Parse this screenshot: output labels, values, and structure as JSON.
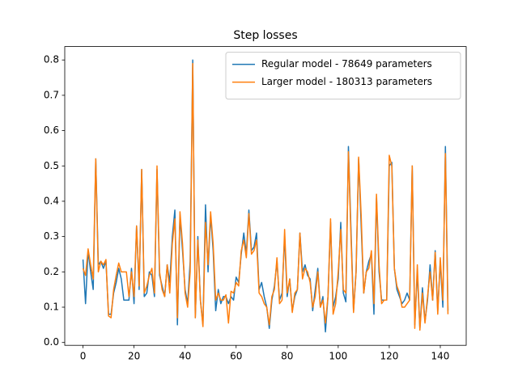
{
  "chart_data": {
    "type": "line",
    "title": "Step losses",
    "x": [
      0,
      1,
      2,
      3,
      4,
      5,
      6,
      7,
      8,
      9,
      10,
      11,
      12,
      13,
      14,
      15,
      16,
      17,
      18,
      19,
      20,
      21,
      22,
      23,
      24,
      25,
      26,
      27,
      28,
      29,
      30,
      31,
      32,
      33,
      34,
      35,
      36,
      37,
      38,
      39,
      40,
      41,
      42,
      43,
      44,
      45,
      46,
      47,
      48,
      49,
      50,
      51,
      52,
      53,
      54,
      55,
      56,
      57,
      58,
      59,
      60,
      61,
      62,
      63,
      64,
      65,
      66,
      67,
      68,
      69,
      70,
      71,
      72,
      73,
      74,
      75,
      76,
      77,
      78,
      79,
      80,
      81,
      82,
      83,
      84,
      85,
      86,
      87,
      88,
      89,
      90,
      91,
      92,
      93,
      94,
      95,
      96,
      97,
      98,
      99,
      100,
      101,
      102,
      103,
      104,
      105,
      106,
      107,
      108,
      109,
      110,
      111,
      112,
      113,
      114,
      115,
      116,
      117,
      118,
      119,
      120,
      121,
      122,
      123,
      124,
      125,
      126,
      127,
      128,
      129,
      130,
      131,
      132,
      133,
      134,
      135,
      136,
      137,
      138,
      139,
      140,
      141,
      142,
      143
    ],
    "series": [
      {
        "name": "Regular model - 78649 parameters",
        "color": "#1f77b4",
        "values": [
          0.235,
          0.11,
          0.26,
          0.2,
          0.15,
          0.52,
          0.22,
          0.23,
          0.21,
          0.23,
          0.08,
          0.08,
          0.14,
          0.17,
          0.21,
          0.18,
          0.12,
          0.12,
          0.12,
          0.21,
          0.11,
          0.33,
          0.15,
          0.49,
          0.13,
          0.14,
          0.2,
          0.19,
          0.13,
          0.49,
          0.19,
          0.16,
          0.13,
          0.22,
          0.17,
          0.3,
          0.375,
          0.05,
          0.36,
          0.26,
          0.15,
          0.11,
          0.23,
          0.8,
          0.07,
          0.3,
          0.12,
          0.05,
          0.39,
          0.2,
          0.36,
          0.26,
          0.09,
          0.15,
          0.11,
          0.13,
          0.13,
          0.11,
          0.13,
          0.12,
          0.185,
          0.17,
          0.25,
          0.31,
          0.25,
          0.375,
          0.26,
          0.27,
          0.31,
          0.15,
          0.17,
          0.13,
          0.1,
          0.04,
          0.12,
          0.16,
          0.23,
          0.12,
          0.14,
          0.3,
          0.13,
          0.18,
          0.09,
          0.13,
          0.15,
          0.31,
          0.2,
          0.22,
          0.19,
          0.18,
          0.09,
          0.15,
          0.21,
          0.1,
          0.13,
          0.03,
          0.13,
          0.34,
          0.1,
          0.13,
          0.18,
          0.34,
          0.14,
          0.115,
          0.555,
          0.32,
          0.09,
          0.2,
          0.52,
          0.33,
          0.14,
          0.2,
          0.23,
          0.25,
          0.08,
          0.41,
          0.2,
          0.12,
          0.12,
          0.12,
          0.5,
          0.51,
          0.21,
          0.15,
          0.13,
          0.11,
          0.12,
          0.14,
          0.12,
          0.5,
          0.05,
          0.2,
          0.04,
          0.155,
          0.06,
          0.12,
          0.22,
          0.12,
          0.26,
          0.09,
          0.23,
          0.1,
          0.555,
          0.09
        ]
      },
      {
        "name": "Larger model - 180313 parameters",
        "color": "#ff7f0e",
        "values": [
          0.21,
          0.19,
          0.265,
          0.22,
          0.18,
          0.52,
          0.2,
          0.23,
          0.22,
          0.235,
          0.075,
          0.07,
          0.15,
          0.19,
          0.225,
          0.2,
          0.2,
          0.2,
          0.13,
          0.2,
          0.13,
          0.33,
          0.16,
          0.49,
          0.14,
          0.16,
          0.19,
          0.21,
          0.14,
          0.5,
          0.2,
          0.15,
          0.13,
          0.22,
          0.14,
          0.28,
          0.35,
          0.07,
          0.37,
          0.28,
          0.14,
          0.1,
          0.2,
          0.79,
          0.07,
          0.29,
          0.12,
          0.045,
          0.34,
          0.22,
          0.37,
          0.28,
          0.12,
          0.14,
          0.12,
          0.12,
          0.135,
          0.055,
          0.145,
          0.14,
          0.17,
          0.16,
          0.26,
          0.29,
          0.24,
          0.365,
          0.25,
          0.26,
          0.29,
          0.14,
          0.13,
          0.11,
          0.1,
          0.05,
          0.13,
          0.15,
          0.24,
          0.11,
          0.12,
          0.32,
          0.14,
          0.18,
          0.085,
          0.14,
          0.15,
          0.31,
          0.18,
          0.21,
          0.2,
          0.17,
          0.1,
          0.13,
          0.2,
          0.1,
          0.12,
          0.055,
          0.13,
          0.35,
          0.08,
          0.11,
          0.2,
          0.32,
          0.15,
          0.14,
          0.54,
          0.3,
          0.085,
          0.2,
          0.525,
          0.36,
          0.14,
          0.2,
          0.21,
          0.26,
          0.11,
          0.42,
          0.22,
          0.11,
          0.12,
          0.12,
          0.53,
          0.5,
          0.21,
          0.16,
          0.14,
          0.1,
          0.1,
          0.11,
          0.12,
          0.5,
          0.04,
          0.22,
          0.035,
          0.14,
          0.055,
          0.13,
          0.2,
          0.12,
          0.255,
          0.08,
          0.24,
          0.12,
          0.535,
          0.08
        ]
      }
    ],
    "xlim": [
      -7.15,
      150.15
    ],
    "xticks": [
      0,
      20,
      40,
      60,
      80,
      100,
      120,
      140
    ],
    "ylim": [
      -0.008,
      0.838
    ],
    "yticks": [
      {
        "value": 0,
        "label": "0.0"
      },
      0.1,
      0.2,
      0.3,
      0.4,
      0.5,
      0.6,
      0.7,
      0.8
    ],
    "grid": false,
    "legend": "upper right"
  }
}
